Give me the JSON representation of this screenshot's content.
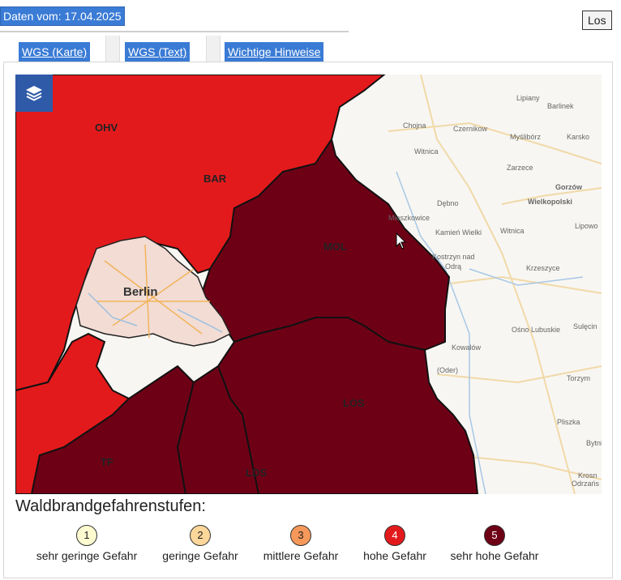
{
  "header": {
    "date_label": "Daten vom: 17.04.2025",
    "go_button": "Los"
  },
  "tabs": [
    {
      "label": "WGS (Karte)"
    },
    {
      "label": "WGS (Text)"
    },
    {
      "label": "Wichtige Hinweise"
    }
  ],
  "map": {
    "layers_icon": "layers-icon",
    "districts": [
      {
        "code": "OHV",
        "level": 4
      },
      {
        "code": "BAR",
        "level": 4
      },
      {
        "code": "MOL",
        "level": 5
      },
      {
        "code": "LOS",
        "level": 5
      },
      {
        "code": "TF",
        "level": 5
      },
      {
        "code": "LDS",
        "level": 5
      }
    ],
    "berlin_label": "Berlin",
    "poland_places": [
      "Lipiany",
      "Barlinek",
      "Chojna",
      "Czernikow",
      "Myślibórz",
      "Karsko",
      "Witnica",
      "Zarzece",
      "Gorzów",
      "Wielkopolski",
      "Dębno",
      "Mieszkowice",
      "Kamień Wielki",
      "Witnica",
      "Lipowo",
      "Kostrzyn nad",
      "Odrą",
      "Krzeszyce",
      "Sulęcin",
      "Ośno Lubuskie",
      "Kowalów",
      "(Oder)",
      "Torzym",
      "Pliszka",
      "Bytni",
      "Krosn",
      "Odrzańs"
    ],
    "colors": {
      "level4": "#e31a1c",
      "level5": "#6e0016",
      "berlin": "#f2dcd4",
      "background": "#f7f6f2"
    }
  },
  "legend": {
    "title": "Waldbrandgefahrenstufen:",
    "items": [
      {
        "num": "1",
        "label": "sehr geringe Gefahr",
        "color": "#fffbd1"
      },
      {
        "num": "2",
        "label": "geringe Gefahr",
        "color": "#fdd79a"
      },
      {
        "num": "3",
        "label": "mittlere Gefahr",
        "color": "#f5985a"
      },
      {
        "num": "4",
        "label": "hohe Gefahr",
        "color": "#e31a1c"
      },
      {
        "num": "5",
        "label": "sehr hohe Gefahr",
        "color": "#6e0016"
      }
    ]
  }
}
